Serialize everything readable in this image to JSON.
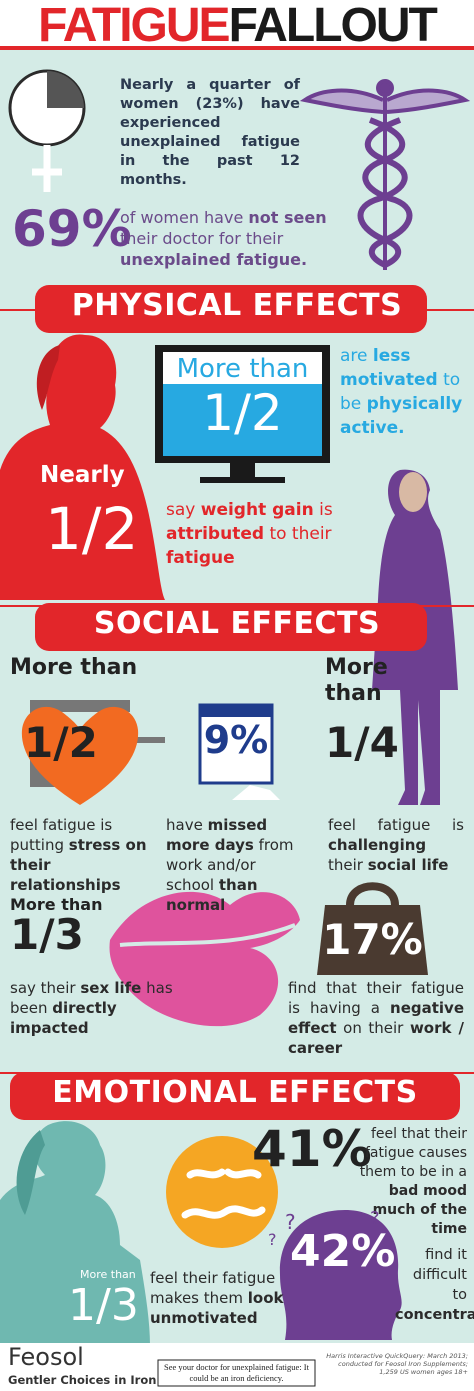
{
  "title": {
    "left": "FATIGUE",
    "right": "FALLOUT"
  },
  "intro": {
    "quarter": "Nearly a quarter of women (23%) have experienced unexplained fatigue in the past 12 months.",
    "stat": "69%",
    "doctor": [
      "of women have ",
      "not seen",
      " their doctor for their ",
      "unexplained fatigue."
    ]
  },
  "physical": {
    "heading": "PHYSICAL EFFECTS",
    "monitor": {
      "lead": "More than",
      "value": "1/2"
    },
    "motivated": [
      "are ",
      "less motivated",
      " to be ",
      "physically active."
    ],
    "nearly": {
      "lead": "Nearly",
      "value": "1/2"
    },
    "weight": [
      "say ",
      "weight gain",
      " is ",
      "attributed",
      " to their ",
      "fatigue"
    ]
  },
  "social": {
    "heading": "SOCIAL EFFECTS",
    "items": [
      {
        "lead": "More than",
        "value": "1/2",
        "text": [
          "feel fatigue is putting ",
          "stress on their relationships"
        ]
      },
      {
        "value": "9%",
        "text": [
          "have ",
          "missed more days",
          " from work and/or school ",
          "than normal"
        ]
      },
      {
        "lead": "More than",
        "value": "1/4",
        "text": [
          "feel fatigue is ",
          "challenging",
          " their ",
          "social life"
        ]
      },
      {
        "lead": "More than",
        "value": "1/3",
        "text": [
          "say their ",
          "sex life",
          " has been ",
          "directly impacted"
        ]
      },
      {
        "value": "17%",
        "text": [
          "find that their fatigue is having a ",
          "negative effect",
          " on their ",
          "work / career"
        ]
      }
    ]
  },
  "emotional": {
    "heading": "EMOTIONAL EFFECTS",
    "question_mark": "?",
    "items": [
      {
        "value": "41%",
        "text": [
          "feel that their fatigue causes them to be in a ",
          "bad mood much of the time"
        ]
      },
      {
        "value": "42%",
        "text": [
          "find it difficult to ",
          "concentrate"
        ]
      },
      {
        "lead": "More than",
        "value": "1/3",
        "text": [
          "feel their fatigue makes them ",
          "look unmotivated"
        ]
      }
    ]
  },
  "footer": {
    "brand": "Feosol",
    "tagline": "Gentler Choices in Iron",
    "note": "See your doctor for unexplained fatigue: It could be an iron deficiency.",
    "source": "Harris Interactive QuickQuery: March 2013; conducted for Feosol Iron Supplements; 1,259 US women ages 18+"
  }
}
